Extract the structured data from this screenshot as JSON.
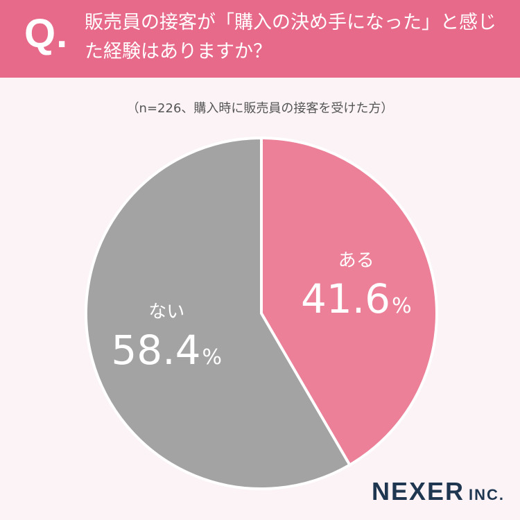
{
  "header": {
    "q_mark": "Q.",
    "question": "販売員の接客が「購入の決め手になった」と感じた経験はありますか？"
  },
  "subtitle": "（n=226、購入時に販売員の接客を受けた方）",
  "logo": {
    "name": "NEXER",
    "suffix": "INC."
  },
  "colors": {
    "header": "#e86a8a",
    "aru": "#ec8098",
    "nai": "#a3a3a3",
    "background": "#fbf3f5"
  },
  "chart_data": {
    "type": "pie",
    "title": "",
    "slices": [
      {
        "label": "ある",
        "value": 41.6,
        "value_text": "41.6",
        "color": "#ec8098"
      },
      {
        "label": "ない",
        "value": 58.4,
        "value_text": "58.4",
        "color": "#a3a3a3"
      }
    ],
    "unit": "%"
  }
}
